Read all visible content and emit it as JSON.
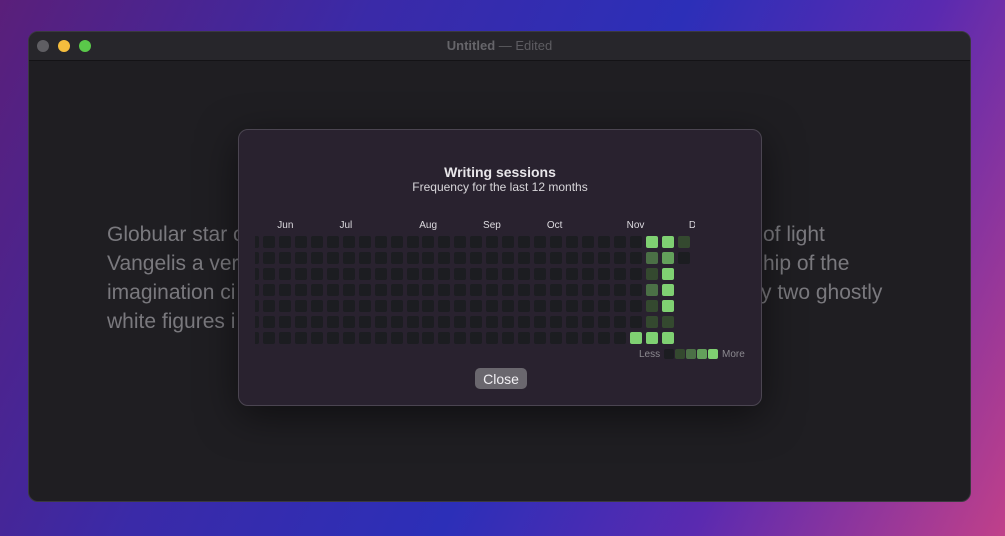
{
  "window": {
    "title": "Untitled",
    "subtitle": "— Edited",
    "traffic_lights": {
      "close": "#5f5e63",
      "minimize": "#f5bd3d",
      "zoom": "#5ac84a"
    }
  },
  "document": {
    "lines": [
      {
        "left": "Globular star c",
        "right": "of light"
      },
      {
        "left": "Vangelis a very",
        "right": "hip of the"
      },
      {
        "left": "imagination ci",
        "right": "y two ghostly"
      },
      {
        "left": "white figures i",
        "right": ""
      }
    ]
  },
  "dialog": {
    "title": "Writing sessions",
    "subtitle": "Frequency for the last 12 months",
    "months": [
      "Jun",
      "Jul",
      "Aug",
      "Sep",
      "Oct",
      "Nov",
      "Dec"
    ],
    "level_colors": [
      "#1c1d21",
      "#34492f",
      "#4b6f46",
      "#63a05b",
      "#7fd072"
    ],
    "weeks": [
      [
        0,
        0,
        0,
        0,
        0,
        0,
        0
      ],
      [
        0,
        0,
        0,
        0,
        0,
        0,
        0
      ],
      [
        0,
        0,
        0,
        0,
        0,
        0,
        0
      ],
      [
        0,
        0,
        0,
        0,
        0,
        0,
        0
      ],
      [
        0,
        0,
        0,
        0,
        0,
        0,
        0
      ],
      [
        0,
        0,
        0,
        0,
        0,
        0,
        0
      ],
      [
        0,
        0,
        0,
        0,
        0,
        0,
        0
      ],
      [
        0,
        0,
        0,
        0,
        0,
        0,
        0
      ],
      [
        0,
        0,
        0,
        0,
        0,
        0,
        0
      ],
      [
        0,
        0,
        0,
        0,
        0,
        0,
        0
      ],
      [
        0,
        0,
        0,
        0,
        0,
        0,
        0
      ],
      [
        0,
        0,
        0,
        0,
        0,
        0,
        0
      ],
      [
        0,
        0,
        0,
        0,
        0,
        0,
        0
      ],
      [
        0,
        0,
        0,
        0,
        0,
        0,
        0
      ],
      [
        0,
        0,
        0,
        0,
        0,
        0,
        0
      ],
      [
        0,
        0,
        0,
        0,
        0,
        0,
        0
      ],
      [
        0,
        0,
        0,
        0,
        0,
        0,
        0
      ],
      [
        0,
        0,
        0,
        0,
        0,
        0,
        0
      ],
      [
        0,
        0,
        0,
        0,
        0,
        0,
        0
      ],
      [
        0,
        0,
        0,
        0,
        0,
        0,
        0
      ],
      [
        0,
        0,
        0,
        0,
        0,
        0,
        0
      ],
      [
        0,
        0,
        0,
        0,
        0,
        0,
        0
      ],
      [
        0,
        0,
        0,
        0,
        0,
        0,
        0
      ],
      [
        0,
        0,
        0,
        0,
        0,
        0,
        0
      ],
      [
        0,
        0,
        0,
        0,
        0,
        0,
        4
      ],
      [
        4,
        2,
        1,
        2,
        1,
        1,
        4
      ],
      [
        4,
        3,
        4,
        4,
        4,
        1,
        4
      ],
      [
        1,
        0
      ]
    ],
    "legend": {
      "less": "Less",
      "more": "More"
    },
    "close_label": "Close"
  }
}
